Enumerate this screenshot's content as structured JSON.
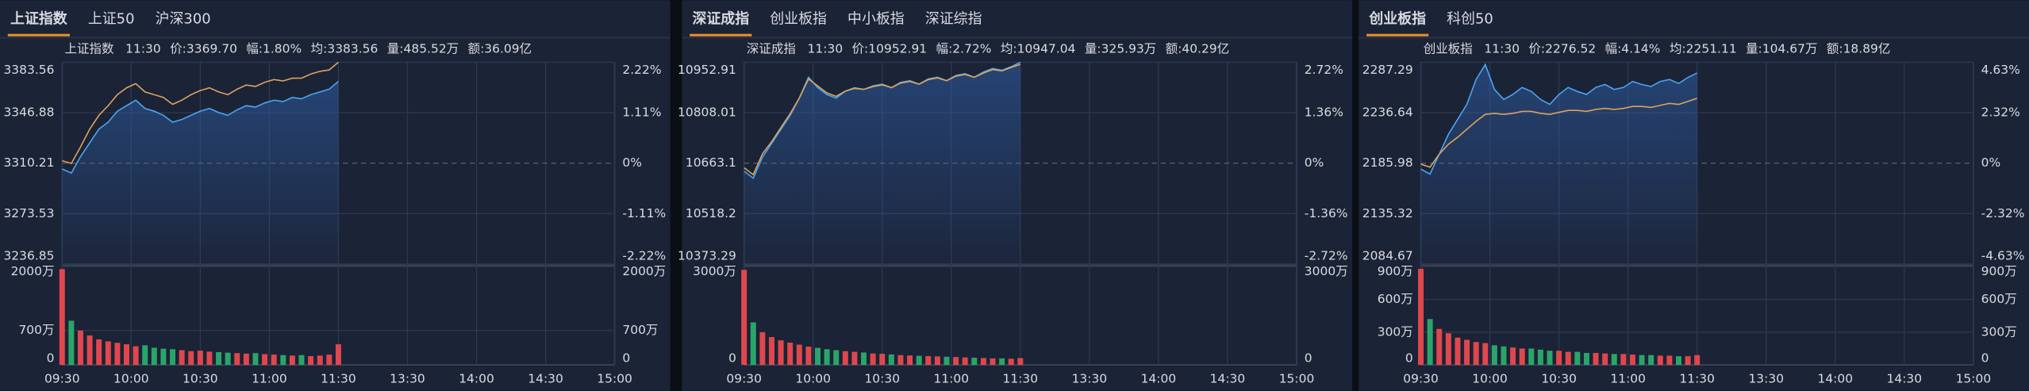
{
  "chart_data": [
    {
      "type": "line",
      "tabs": [
        "上证指数",
        "上证50",
        "沪深300"
      ],
      "active_tab": 0,
      "header": [
        {
          "text": "上证指数",
          "color": "#e6e6e6"
        },
        {
          "text": "11:30",
          "color": "#e6e6e6"
        },
        {
          "text": "价:3369.70",
          "color": "#ef4b4b"
        },
        {
          "text": "幅:1.80%",
          "color": "#ef4b4b"
        },
        {
          "text": "均:3383.56",
          "color": "#ef4b4b"
        },
        {
          "text": "量:485.52万",
          "color": "#e6e6e6"
        },
        {
          "text": "额:36.09亿",
          "color": "#e6e6e6"
        }
      ],
      "x": [
        0,
        4,
        8,
        12,
        16,
        20,
        24,
        28,
        32,
        36,
        40,
        44,
        48,
        52,
        56,
        60,
        64,
        68,
        72,
        76,
        80,
        84,
        88,
        92,
        96,
        100,
        104,
        108,
        112,
        116,
        120
      ],
      "xlim": [
        0,
        240
      ],
      "xticks": [
        {
          "value": 0,
          "label": "09:30"
        },
        {
          "value": 30,
          "label": "10:00"
        },
        {
          "value": 60,
          "label": "10:30"
        },
        {
          "value": 90,
          "label": "11:00"
        },
        {
          "value": 120,
          "label": "11:30"
        },
        {
          "value": 150,
          "label": "13:30"
        },
        {
          "value": 180,
          "label": "14:00"
        },
        {
          "value": 210,
          "label": "14:30"
        },
        {
          "value": 240,
          "label": "15:00"
        }
      ],
      "series": [
        {
          "color": "#4aa3f0",
          "values": [
            3306,
            3303,
            3315,
            3325,
            3335,
            3340,
            3348,
            3352,
            3356,
            3350,
            3348,
            3345,
            3340,
            3342,
            3345,
            3348,
            3350,
            3347,
            3345,
            3349,
            3352,
            3351,
            3354,
            3356,
            3355,
            3358,
            3357,
            3360,
            3362,
            3364,
            3369.7
          ]
        },
        {
          "color": "#d9a25e",
          "values": [
            3312,
            3310,
            3322,
            3335,
            3345,
            3352,
            3360,
            3365,
            3368,
            3362,
            3360,
            3358,
            3353,
            3356,
            3360,
            3363,
            3365,
            3362,
            3360,
            3364,
            3367,
            3366,
            3369,
            3371,
            3370,
            3372,
            3372,
            3375,
            3377,
            3378,
            3383.56
          ]
        }
      ],
      "ylim": [
        3236.85,
        3383.56
      ],
      "yticks": [
        3236.85,
        3273.53,
        3310.21,
        3346.88,
        3383.56
      ],
      "y2lim": [
        -2.22,
        2.22
      ],
      "y2ticks": [
        {
          "value": -2.22,
          "label": "-2.22%"
        },
        {
          "value": -1.11,
          "label": "-1.11%"
        },
        {
          "value": 0,
          "label": "0%"
        },
        {
          "value": 1.11,
          "label": "1.11%"
        },
        {
          "value": 2.22,
          "label": "2.22%"
        }
      ],
      "volume_values": [
        1950,
        900,
        700,
        600,
        520,
        480,
        450,
        420,
        380,
        400,
        350,
        330,
        320,
        300,
        280,
        290,
        270,
        260,
        250,
        240,
        230,
        240,
        220,
        210,
        200,
        190,
        200,
        180,
        190,
        210,
        420
      ],
      "volume_ylim": [
        0,
        2000
      ],
      "volume_yticks": [
        0,
        {
          "value": 700,
          "label": "700万"
        },
        {
          "value": 2000,
          "label": "2000万"
        }
      ],
      "up_color": "#e0474c",
      "down_color": "#2aa56a",
      "grid": true
    },
    {
      "type": "line",
      "tabs": [
        "深证成指",
        "创业板指",
        "中小板指",
        "深证综指"
      ],
      "active_tab": 0,
      "header": [
        {
          "text": "深证成指",
          "color": "#e6e6e6"
        },
        {
          "text": "11:30",
          "color": "#e6e6e6"
        },
        {
          "text": "价:10952.91",
          "color": "#ef4b4b"
        },
        {
          "text": "幅:2.72%",
          "color": "#ef4b4b"
        },
        {
          "text": "均:10947.04",
          "color": "#ef4b4b"
        },
        {
          "text": "量:325.93万",
          "color": "#e6e6e6"
        },
        {
          "text": "额:40.29亿",
          "color": "#e6e6e6"
        }
      ],
      "x": [
        0,
        4,
        8,
        12,
        16,
        20,
        24,
        28,
        32,
        36,
        40,
        44,
        48,
        52,
        56,
        60,
        64,
        68,
        72,
        76,
        80,
        84,
        88,
        92,
        96,
        100,
        104,
        108,
        112,
        116,
        120
      ],
      "xlim": [
        0,
        240
      ],
      "xticks": [
        {
          "value": 0,
          "label": "09:30"
        },
        {
          "value": 30,
          "label": "10:00"
        },
        {
          "value": 60,
          "label": "10:30"
        },
        {
          "value": 90,
          "label": "11:00"
        },
        {
          "value": 120,
          "label": "11:30"
        },
        {
          "value": 150,
          "label": "13:30"
        },
        {
          "value": 180,
          "label": "14:00"
        },
        {
          "value": 210,
          "label": "14:30"
        },
        {
          "value": 240,
          "label": "15:00"
        }
      ],
      "series": [
        {
          "color": "#4aa3f0",
          "values": [
            10640,
            10620,
            10680,
            10720,
            10760,
            10800,
            10850,
            10910,
            10880,
            10860,
            10850,
            10870,
            10880,
            10875,
            10885,
            10890,
            10880,
            10895,
            10900,
            10890,
            10905,
            10910,
            10900,
            10915,
            10920,
            10910,
            10925,
            10935,
            10930,
            10940,
            10952.91
          ]
        },
        {
          "color": "#d9a25e",
          "values": [
            10650,
            10630,
            10690,
            10725,
            10765,
            10805,
            10850,
            10905,
            10885,
            10865,
            10855,
            10870,
            10878,
            10875,
            10883,
            10888,
            10880,
            10893,
            10898,
            10890,
            10903,
            10908,
            10900,
            10913,
            10918,
            10910,
            10922,
            10932,
            10928,
            10938,
            10947.04
          ]
        }
      ],
      "ylim": [
        10373.29,
        10952.91
      ],
      "yticks": [
        10373.29,
        10518.2,
        10663.1,
        10808.01,
        10952.91
      ],
      "y2lim": [
        -2.72,
        2.72
      ],
      "y2ticks": [
        {
          "value": -2.72,
          "label": "-2.72%"
        },
        {
          "value": -1.36,
          "label": "-1.36%"
        },
        {
          "value": 0,
          "label": "0%"
        },
        {
          "value": 1.36,
          "label": "1.36%"
        },
        {
          "value": 2.72,
          "label": "2.72%"
        }
      ],
      "volume_values": [
        2900,
        1300,
        1000,
        850,
        750,
        680,
        620,
        560,
        520,
        480,
        450,
        420,
        400,
        380,
        350,
        340,
        320,
        300,
        290,
        280,
        270,
        260,
        250,
        240,
        230,
        220,
        210,
        200,
        200,
        190,
        210
      ],
      "volume_ylim": [
        0,
        3000
      ],
      "volume_yticks": [
        0,
        {
          "value": 3000,
          "label": "3000万"
        }
      ],
      "up_color": "#e0474c",
      "down_color": "#2aa56a",
      "grid": true
    },
    {
      "type": "line",
      "tabs": [
        "创业板指",
        "科创50"
      ],
      "active_tab": 0,
      "header": [
        {
          "text": "创业板指",
          "color": "#e6e6e6"
        },
        {
          "text": "11:30",
          "color": "#e6e6e6"
        },
        {
          "text": "价:2276.52",
          "color": "#ef4b4b"
        },
        {
          "text": "幅:4.14%",
          "color": "#ef4b4b"
        },
        {
          "text": "均:2251.11",
          "color": "#ef4b4b"
        },
        {
          "text": "量:104.67万",
          "color": "#e6e6e6"
        },
        {
          "text": "额:18.89亿",
          "color": "#e6e6e6"
        }
      ],
      "x": [
        0,
        4,
        8,
        12,
        16,
        20,
        24,
        28,
        32,
        36,
        40,
        44,
        48,
        52,
        56,
        60,
        64,
        68,
        72,
        76,
        80,
        84,
        88,
        92,
        96,
        100,
        104,
        108,
        112,
        116,
        120
      ],
      "xlim": [
        0,
        240
      ],
      "xticks": [
        {
          "value": 0,
          "label": "09:30"
        },
        {
          "value": 30,
          "label": "10:00"
        },
        {
          "value": 60,
          "label": "10:30"
        },
        {
          "value": 90,
          "label": "11:00"
        },
        {
          "value": 120,
          "label": "11:30"
        },
        {
          "value": 150,
          "label": "13:30"
        },
        {
          "value": 180,
          "label": "14:00"
        },
        {
          "value": 210,
          "label": "14:30"
        },
        {
          "value": 240,
          "label": "15:00"
        }
      ],
      "series": [
        {
          "color": "#4aa3f0",
          "values": [
            2180,
            2175,
            2195,
            2215,
            2230,
            2245,
            2270,
            2285,
            2260,
            2250,
            2255,
            2262,
            2258,
            2250,
            2245,
            2255,
            2262,
            2258,
            2255,
            2262,
            2265,
            2260,
            2262,
            2268,
            2265,
            2263,
            2268,
            2270,
            2266,
            2272,
            2276.52
          ]
        },
        {
          "color": "#d9a25e",
          "values": [
            2185,
            2182,
            2195,
            2205,
            2212,
            2220,
            2228,
            2235,
            2236,
            2235,
            2236,
            2238,
            2238,
            2236,
            2235,
            2237,
            2239,
            2239,
            2238,
            2240,
            2241,
            2240,
            2241,
            2243,
            2243,
            2242,
            2244,
            2246,
            2245,
            2248,
            2251.11
          ]
        }
      ],
      "ylim": [
        2084.67,
        2287.29
      ],
      "yticks": [
        2084.67,
        2135.32,
        2185.98,
        2236.64,
        2287.29
      ],
      "y2lim": [
        -4.63,
        4.63
      ],
      "y2ticks": [
        {
          "value": -4.63,
          "label": "-4.63%"
        },
        {
          "value": -2.32,
          "label": "-2.32%"
        },
        {
          "value": 0,
          "label": "0%"
        },
        {
          "value": 2.32,
          "label": "2.32%"
        },
        {
          "value": 4.63,
          "label": "4.63%"
        }
      ],
      "volume_values": [
        880,
        420,
        330,
        290,
        250,
        230,
        210,
        200,
        180,
        170,
        160,
        150,
        150,
        140,
        130,
        130,
        120,
        120,
        110,
        110,
        105,
        100,
        100,
        95,
        90,
        90,
        85,
        85,
        80,
        80,
        90
      ],
      "volume_ylim": [
        0,
        900
      ],
      "volume_yticks": [
        0,
        {
          "value": 300,
          "label": "300万"
        },
        {
          "value": 600,
          "label": "600万"
        },
        {
          "value": 900,
          "label": "900万"
        }
      ],
      "up_color": "#e0474c",
      "down_color": "#2aa56a",
      "grid": true
    }
  ]
}
